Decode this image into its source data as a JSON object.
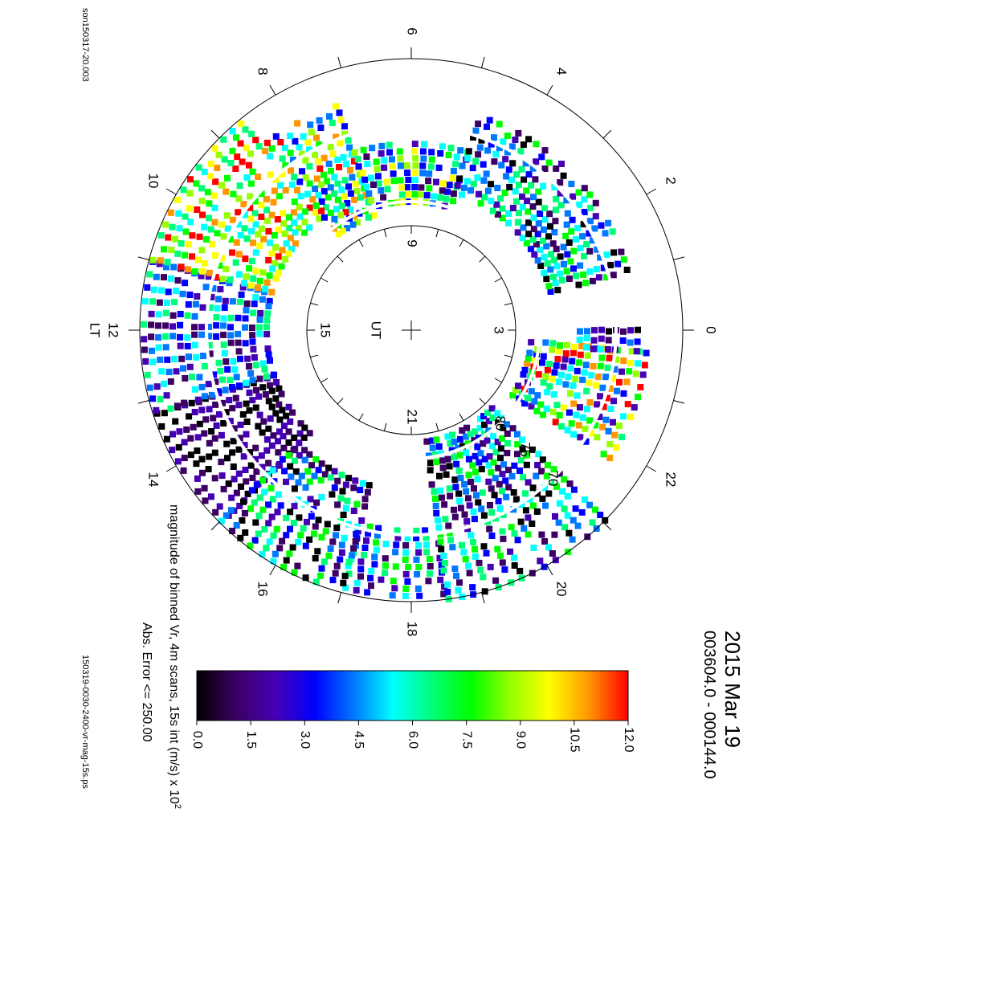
{
  "chart_data": {
    "type": "heatmap",
    "projection": "polar-dial",
    "title": "2015 Mar 19",
    "subtitle": "003604.0 - 000144.0",
    "colorbar_label": "magnitude of binned Vr, 4m scans, 15s int (m/s) x 10",
    "colorbar_label_superscript": "2",
    "error_label": "Abs. Error <= 250.00",
    "file_label_top": "son150317-20.003",
    "file_label_bottom": "150319-0030-2400-vr-mag-15s.ps",
    "outer_axis_label": "LT",
    "inner_axis_label": "UT",
    "lt_hours": [
      "18",
      "20",
      "22",
      "0",
      "2",
      "4",
      "6",
      "8",
      "10",
      "12",
      "14",
      "16"
    ],
    "ut_hours": [
      "21",
      "3",
      "9",
      "15"
    ],
    "latitude_labels": [
      "70",
      "75",
      "80"
    ],
    "colorbar_ticks": [
      "0.0",
      "1.5",
      "3.0",
      "4.5",
      "6.0",
      "7.5",
      "9.0",
      "10.5",
      "12.0"
    ],
    "colorbar_range": [
      0,
      12
    ],
    "colormap": [
      "#000000",
      "#3c0064",
      "#4600b4",
      "#0000ff",
      "#0078ff",
      "#00ffff",
      "#00ff78",
      "#00ff00",
      "#96ff00",
      "#ffff00",
      "#ff9600",
      "#ff0000"
    ],
    "grid": true,
    "sectors": [
      {
        "lt_start": 17.3,
        "lt_end": 17.8,
        "value_description": "mixed 3.0-7.5"
      },
      {
        "lt_start": 13.4,
        "lt_end": 14.6,
        "value_description": "mostly 0.0-1.5"
      },
      {
        "lt_start": 8.6,
        "lt_end": 11.0,
        "value_description": "frequently 12.0"
      },
      {
        "lt_start": 22.2,
        "lt_end": 23.4,
        "value_description": "up to 12.0"
      },
      {
        "lt_start": 0.7,
        "lt_end": 4.8,
        "value_description": "mixed 1.5-6.0"
      }
    ]
  }
}
